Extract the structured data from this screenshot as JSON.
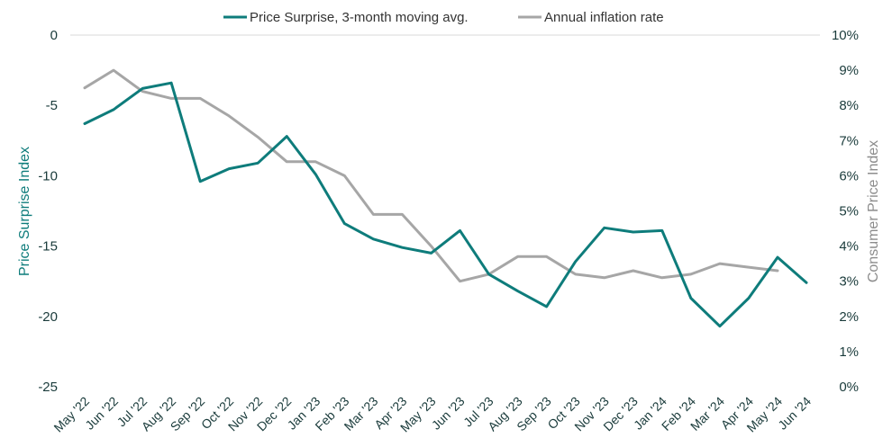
{
  "chart_data": {
    "type": "line",
    "categories": [
      "May '22",
      "Jun '22",
      "Jul '22",
      "Aug '22",
      "Sep '22",
      "Oct '22",
      "Nov '22",
      "Dec '22",
      "Jan '23",
      "Feb '23",
      "Mar '23",
      "Apr '23",
      "May '23",
      "Jun '23",
      "Jul '23",
      "Aug '23",
      "Sep '23",
      "Oct '23",
      "Nov '23",
      "Dec '23",
      "Jan '24",
      "Feb '24",
      "Mar '24",
      "Apr '24",
      "May '24",
      "Jun '24"
    ],
    "series": [
      {
        "name": "Price Surprise, 3-month moving avg.",
        "axis": "left",
        "color": "#0e7c7b",
        "values": [
          -6.3,
          -5.3,
          -3.8,
          -3.4,
          -10.4,
          -9.5,
          -9.1,
          -7.2,
          -9.9,
          -13.4,
          -14.5,
          -15.1,
          -15.5,
          -13.9,
          -17.0,
          -18.2,
          -19.3,
          -16.1,
          -13.7,
          -14.0,
          -13.9,
          -18.7,
          -20.7,
          -18.7,
          -15.8,
          -17.6
        ]
      },
      {
        "name": "Annual inflation rate",
        "axis": "right",
        "color": "#a6a6a6",
        "values": [
          8.5,
          9.0,
          8.4,
          8.2,
          8.2,
          7.7,
          7.1,
          6.4,
          6.4,
          6.0,
          4.9,
          4.9,
          4.0,
          3.0,
          3.2,
          3.7,
          3.7,
          3.2,
          3.1,
          3.3,
          3.1,
          3.2,
          3.5,
          3.4,
          3.3,
          null
        ]
      }
    ],
    "ylabel": "Price Surprise Index",
    "ylim": [
      -25,
      0
    ],
    "yticks": [
      "0",
      "-5",
      "-10",
      "-15",
      "-20",
      "-25"
    ],
    "y2label": "Consumer Price Index",
    "y2lim": [
      0,
      10
    ],
    "y2ticks": [
      "10%",
      "9%",
      "8%",
      "7%",
      "6%",
      "5%",
      "4%",
      "3%",
      "2%",
      "1%",
      "0%"
    ],
    "grid": "top line only",
    "legend_position": "top"
  }
}
